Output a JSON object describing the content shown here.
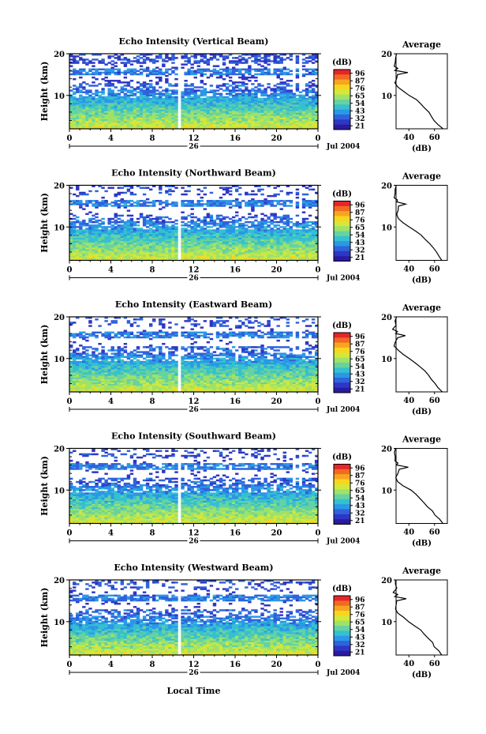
{
  "figure": {
    "bottom_xlabel": "Local Time",
    "date_label": "Jul 2004",
    "day_label": "26",
    "colorbar_unit": "(dB)",
    "colorbar_ticks": [
      "96",
      "87",
      "76",
      "65",
      "54",
      "43",
      "32",
      "21"
    ],
    "colorbar_colors": [
      "#e8242a",
      "#f06a23",
      "#f7a51f",
      "#f7d61f",
      "#d3e83a",
      "#9ee26a",
      "#66d2a0",
      "#35c0d0",
      "#2a98e6",
      "#2f63dc",
      "#2e36c4",
      "#2a1aa0"
    ]
  },
  "chart_data": [
    {
      "type": "heatmap",
      "title": "Echo Intensity (Vertical Beam)",
      "xlabel": "",
      "ylabel": "Height (km)",
      "x_ticks": [
        "0",
        "4",
        "8",
        "12",
        "16",
        "20",
        "0"
      ],
      "y_ticks": [
        "10",
        "20"
      ],
      "ylim": [
        2,
        20
      ],
      "xlim": [
        0,
        24
      ],
      "colorbar_label": "(dB)",
      "colorbar_range": [
        21,
        96
      ],
      "profile": {
        "title": "Average",
        "xlabel": "(dB)",
        "x_ticks": [
          "40",
          "60"
        ],
        "y_ticks": [
          "10",
          "20"
        ],
        "height_km": [
          2,
          3,
          4,
          5,
          6,
          7,
          8,
          9,
          10,
          11,
          12,
          13,
          14,
          15,
          15.5,
          16,
          16.5,
          17,
          18,
          19,
          20
        ],
        "db": [
          66,
          62,
          60,
          58,
          55,
          52,
          49,
          46,
          40,
          36,
          31,
          29,
          30,
          31,
          40,
          29,
          31,
          28,
          30,
          29,
          30
        ]
      }
    },
    {
      "type": "heatmap",
      "title": "Echo Intensity (Northward Beam)",
      "xlabel": "",
      "ylabel": "Height (km)",
      "x_ticks": [
        "0",
        "4",
        "8",
        "12",
        "16",
        "20",
        "0"
      ],
      "y_ticks": [
        "10",
        "20"
      ],
      "ylim": [
        2,
        20
      ],
      "xlim": [
        0,
        24
      ],
      "colorbar_label": "(dB)",
      "colorbar_range": [
        21,
        96
      ],
      "profile": {
        "title": "Average",
        "xlabel": "(dB)",
        "x_ticks": [
          "40",
          "60"
        ],
        "y_ticks": [
          "10",
          "20"
        ],
        "height_km": [
          2,
          3,
          4,
          5,
          6,
          7,
          8,
          9,
          10,
          11,
          12,
          13,
          14,
          15,
          15.5,
          16,
          16.5,
          17,
          18,
          19,
          20
        ],
        "db": [
          66,
          64,
          62,
          59,
          56,
          53,
          50,
          46,
          41,
          36,
          32,
          30,
          31,
          32,
          38,
          30,
          31,
          29,
          30,
          29,
          30
        ]
      }
    },
    {
      "type": "heatmap",
      "title": "Echo Intensity (Eastward Beam)",
      "xlabel": "",
      "ylabel": "Height (km)",
      "x_ticks": [
        "0",
        "4",
        "8",
        "12",
        "16",
        "20",
        "0"
      ],
      "y_ticks": [
        "10",
        "20"
      ],
      "ylim": [
        2,
        20
      ],
      "xlim": [
        0,
        24
      ],
      "colorbar_label": "(dB)",
      "colorbar_range": [
        21,
        96
      ],
      "profile": {
        "title": "Average",
        "xlabel": "(dB)",
        "x_ticks": [
          "40",
          "60"
        ],
        "y_ticks": [
          "10",
          "20"
        ],
        "height_km": [
          2,
          3,
          4,
          5,
          6,
          7,
          8,
          9,
          10,
          11,
          12,
          13,
          14,
          15,
          15.5,
          16,
          16.5,
          17,
          18,
          19,
          20
        ],
        "db": [
          66,
          63,
          61,
          58,
          55,
          52,
          49,
          45,
          40,
          35,
          31,
          29,
          30,
          31,
          37,
          29,
          31,
          28,
          30,
          29,
          30
        ]
      }
    },
    {
      "type": "heatmap",
      "title": "Echo Intensity (Southward Beam)",
      "xlabel": "",
      "ylabel": "Height (km)",
      "x_ticks": [
        "0",
        "4",
        "8",
        "12",
        "16",
        "20",
        "0"
      ],
      "y_ticks": [
        "10",
        "20"
      ],
      "ylim": [
        2,
        20
      ],
      "xlim": [
        0,
        24
      ],
      "colorbar_label": "(dB)",
      "colorbar_range": [
        21,
        96
      ],
      "profile": {
        "title": "Average",
        "xlabel": "(dB)",
        "x_ticks": [
          "40",
          "60"
        ],
        "y_ticks": [
          "10",
          "20"
        ],
        "height_km": [
          2,
          3,
          4,
          5,
          6,
          7,
          8,
          9,
          10,
          11,
          12,
          13,
          14,
          15,
          15.5,
          16,
          16.5,
          17,
          18,
          19,
          20
        ],
        "db": [
          66,
          64,
          61,
          58,
          55,
          52,
          49,
          45,
          41,
          36,
          32,
          30,
          31,
          32,
          39,
          30,
          31,
          29,
          30,
          29,
          30
        ]
      }
    },
    {
      "type": "heatmap",
      "title": "Echo Intensity (Westward Beam)",
      "xlabel": "Local Time",
      "ylabel": "Height (km)",
      "x_ticks": [
        "0",
        "4",
        "8",
        "12",
        "16",
        "20",
        "0"
      ],
      "y_ticks": [
        "10",
        "20"
      ],
      "ylim": [
        2,
        20
      ],
      "xlim": [
        0,
        24
      ],
      "colorbar_label": "(dB)",
      "colorbar_range": [
        21,
        96
      ],
      "profile": {
        "title": "Average",
        "xlabel": "(dB)",
        "x_ticks": [
          "40",
          "60"
        ],
        "y_ticks": [
          "10",
          "20"
        ],
        "height_km": [
          2,
          3,
          4,
          5,
          6,
          7,
          8,
          9,
          10,
          11,
          12,
          13,
          14,
          15,
          15.5,
          16,
          16.5,
          17,
          18,
          19,
          20
        ],
        "db": [
          66,
          63,
          60,
          58,
          55,
          52,
          49,
          45,
          40,
          36,
          31,
          29,
          30,
          31,
          38,
          29,
          31,
          28,
          30,
          29,
          30
        ]
      }
    }
  ]
}
